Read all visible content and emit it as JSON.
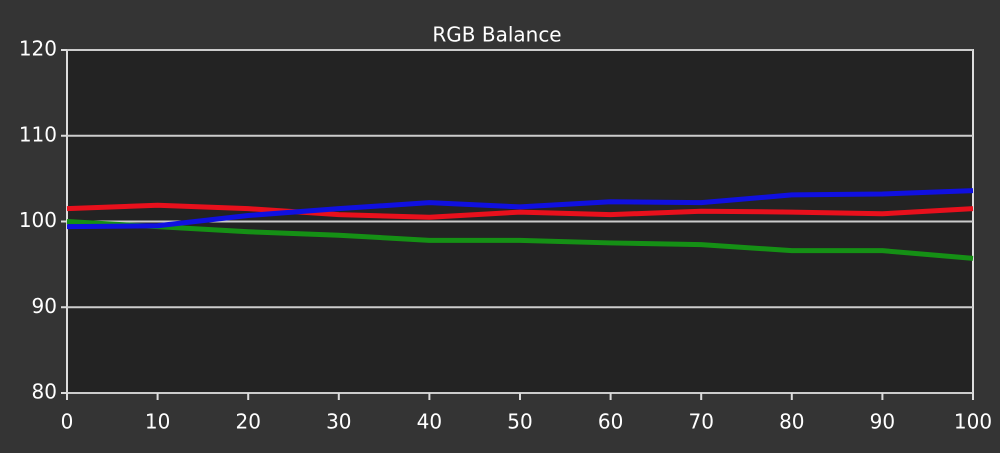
{
  "chart_data": {
    "type": "line",
    "title": "RGB Balance",
    "x": [
      0,
      10,
      20,
      30,
      40,
      50,
      60,
      70,
      80,
      90,
      100
    ],
    "series": [
      {
        "name": "Red",
        "color": "#e8101c",
        "values": [
          101.5,
          101.9,
          101.5,
          100.8,
          100.5,
          101.1,
          100.8,
          101.2,
          101.1,
          100.9,
          101.5
        ]
      },
      {
        "name": "Green",
        "color": "#159015",
        "values": [
          100,
          99.4,
          98.8,
          98.4,
          97.8,
          97.8,
          97.5,
          97.3,
          96.6,
          96.6,
          95.7
        ]
      },
      {
        "name": "Blue",
        "color": "#1010e0",
        "values": [
          99.4,
          99.5,
          100.7,
          101.5,
          102.2,
          101.7,
          102.3,
          102.2,
          103.1,
          103.2,
          103.6
        ]
      }
    ],
    "xlim": [
      0,
      100
    ],
    "xticks": [
      0,
      10,
      20,
      30,
      40,
      50,
      60,
      70,
      80,
      90,
      100
    ],
    "ylim": [
      80,
      120
    ],
    "yticks": [
      80,
      90,
      100,
      110,
      120
    ],
    "grid": true
  }
}
